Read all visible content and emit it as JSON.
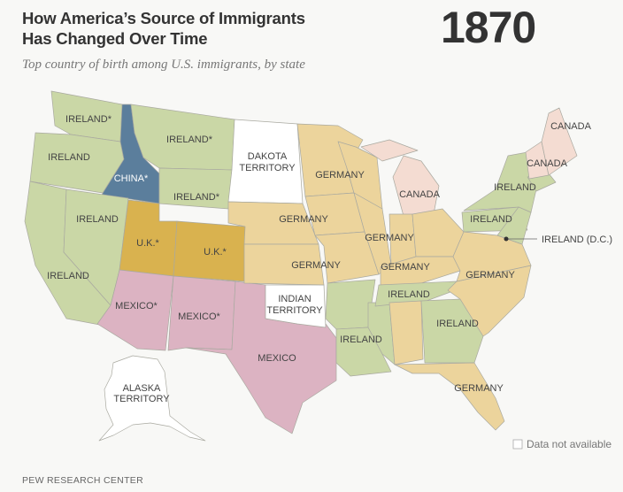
{
  "header": {
    "title": [
      "How America’s Source of Immigrants",
      "Has Changed Over Time"
    ],
    "year": "1870",
    "subtitle": "Top country of birth among U.S. immigrants, by state"
  },
  "map_labels": [
    {
      "text": [
        "IRELAND*"
      ]
    },
    {
      "text": [
        "IRELAND*"
      ]
    },
    {
      "text": [
        "DAKOTA",
        "TERRITORY"
      ]
    },
    {
      "text": [
        "CANADA"
      ]
    },
    {
      "text": [
        "CANADA"
      ]
    },
    {
      "text": [
        "IRELAND"
      ]
    },
    {
      "text": [
        "CHINA*"
      ]
    },
    {
      "text": [
        "GERMANY"
      ]
    },
    {
      "text": [
        "CANADA"
      ]
    },
    {
      "text": [
        "IRELAND*"
      ]
    },
    {
      "text": [
        "IRELAND"
      ]
    },
    {
      "text": [
        "IRELAND"
      ]
    },
    {
      "text": [
        "GERMANY"
      ]
    },
    {
      "text": [
        "IRELAND"
      ]
    },
    {
      "text": [
        "IRELAND (D.C.)"
      ]
    },
    {
      "text": [
        "U.K.*"
      ]
    },
    {
      "text": [
        "U.K.*"
      ]
    },
    {
      "text": [
        "GERMANY"
      ]
    },
    {
      "text": [
        "GERMANY"
      ]
    },
    {
      "text": [
        "GERMANY"
      ]
    },
    {
      "text": [
        "GERMANY"
      ]
    },
    {
      "text": [
        "IRELAND"
      ]
    },
    {
      "text": [
        "IRELAND"
      ]
    },
    {
      "text": [
        "MEXICO*"
      ]
    },
    {
      "text": [
        "MEXICO*"
      ]
    },
    {
      "text": [
        "INDIAN",
        "TERRITORY"
      ]
    },
    {
      "text": [
        "IRELAND"
      ]
    },
    {
      "text": [
        "IRELAND"
      ]
    },
    {
      "text": [
        "MEXICO"
      ]
    },
    {
      "text": [
        "ALASKA",
        "TERRITORY"
      ]
    },
    {
      "text": [
        "GERMANY"
      ]
    }
  ],
  "legend": {
    "label": "Data not available"
  },
  "footer": {
    "source": "PEW RESEARCH CENTER"
  }
}
